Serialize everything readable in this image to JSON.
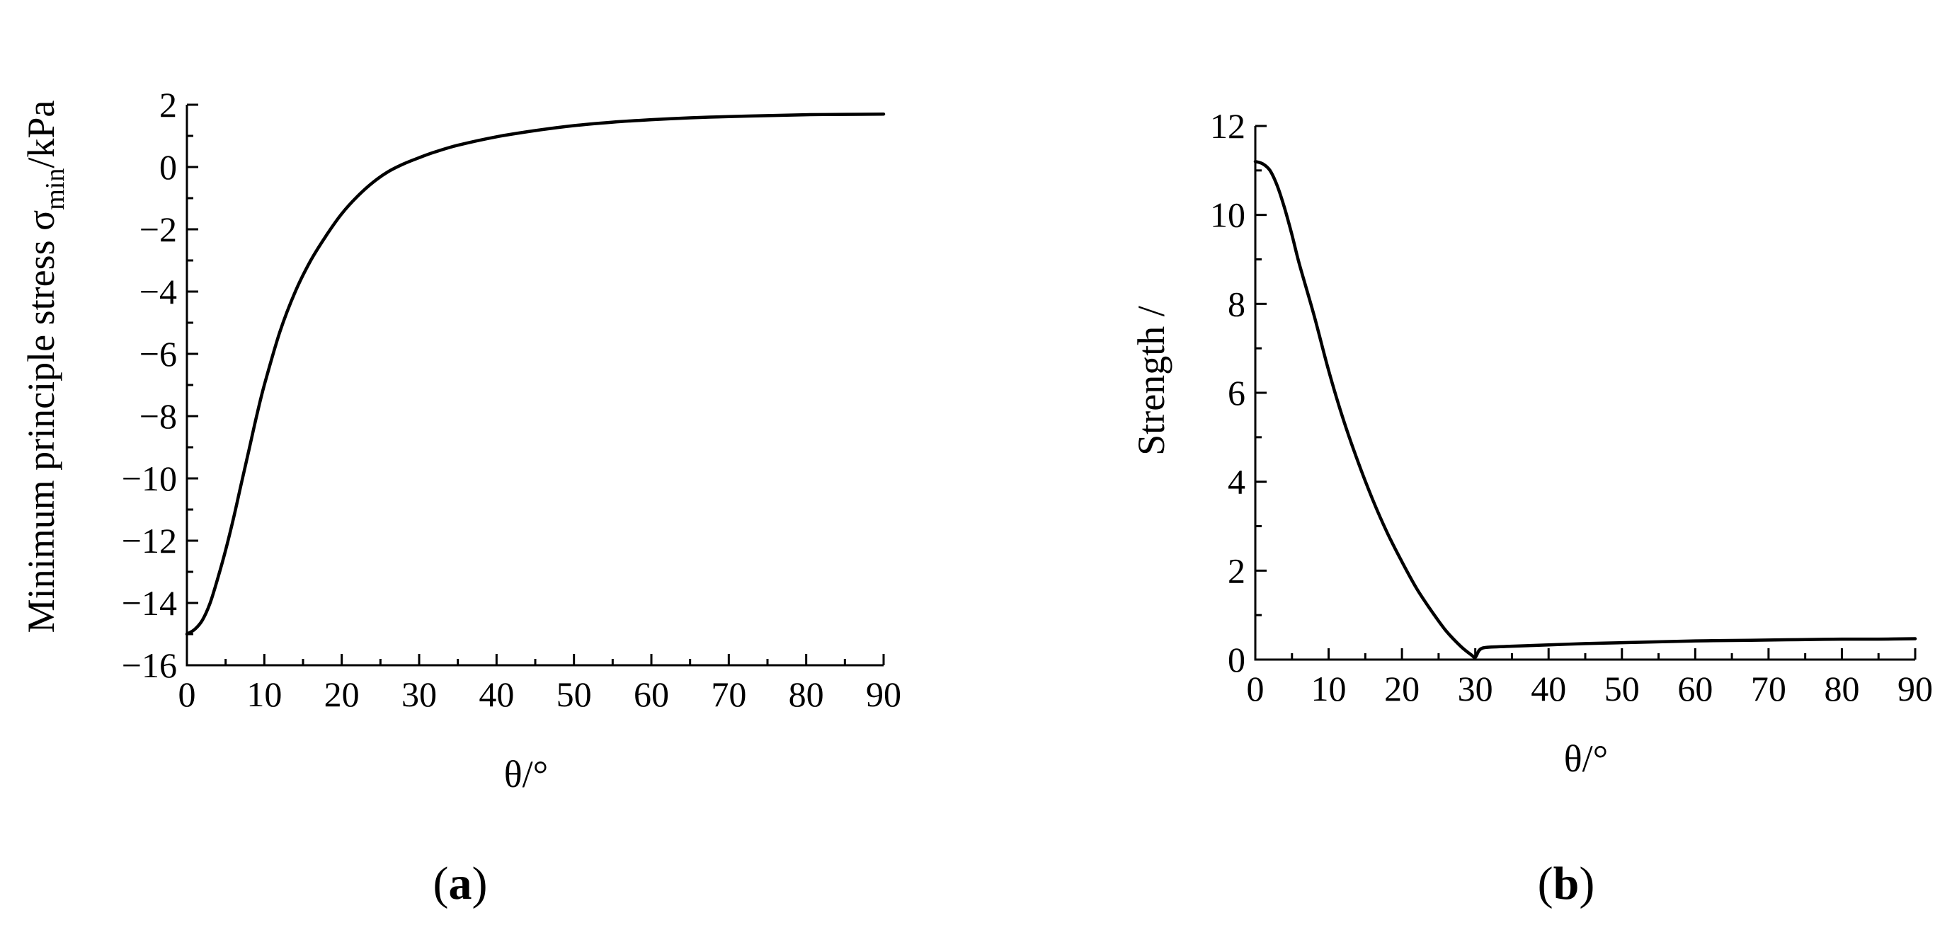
{
  "chart_data": [
    {
      "type": "line",
      "panel_label": "a",
      "xlabel": "θ/°",
      "ylabel_main": "Minimum principle stress σ",
      "ylabel_sub": "min",
      "ylabel_tail": "/kPa",
      "xlim": [
        0,
        90
      ],
      "ylim": [
        -16,
        2
      ],
      "xticks": [
        0,
        10,
        20,
        30,
        40,
        50,
        60,
        70,
        80,
        90
      ],
      "yticks": [
        -16,
        -14,
        -12,
        -10,
        -8,
        -6,
        -4,
        -2,
        0,
        2
      ],
      "xtick_labels": [
        "0",
        "10",
        "20",
        "30",
        "40",
        "50",
        "60",
        "70",
        "80",
        "90"
      ],
      "ytick_labels": [
        "−16",
        "−14",
        "−12",
        "−10",
        "−8",
        "−6",
        "−4",
        "−2",
        "0",
        "2"
      ],
      "grid": false,
      "series": [
        {
          "x": [
            0,
            1,
            2,
            3,
            4,
            5,
            6,
            7,
            8,
            9,
            10,
            12,
            14,
            16,
            18,
            20,
            22,
            24,
            26,
            28,
            30,
            32,
            35,
            40,
            45,
            50,
            55,
            60,
            65,
            70,
            75,
            80,
            85,
            90
          ],
          "y": [
            -15.0,
            -14.85,
            -14.55,
            -14.0,
            -13.2,
            -12.3,
            -11.3,
            -10.2,
            -9.1,
            -8.0,
            -7.0,
            -5.3,
            -4.0,
            -3.0,
            -2.2,
            -1.5,
            -0.95,
            -0.5,
            -0.15,
            0.1,
            0.3,
            0.48,
            0.7,
            0.97,
            1.17,
            1.33,
            1.44,
            1.52,
            1.58,
            1.62,
            1.65,
            1.68,
            1.69,
            1.7
          ]
        }
      ]
    },
    {
      "type": "line",
      "panel_label": "b",
      "xlabel": "θ/°",
      "ylabel": "Strength /",
      "xlim": [
        0,
        90
      ],
      "ylim": [
        0,
        12
      ],
      "xticks": [
        0,
        10,
        20,
        30,
        40,
        50,
        60,
        70,
        80,
        90
      ],
      "yticks": [
        0,
        2,
        4,
        6,
        8,
        10,
        12
      ],
      "xtick_labels": [
        "0",
        "10",
        "20",
        "30",
        "40",
        "50",
        "60",
        "70",
        "80",
        "90"
      ],
      "ytick_labels": [
        "0",
        "2",
        "4",
        "6",
        "8",
        "10",
        "12"
      ],
      "grid": false,
      "series": [
        {
          "x": [
            0,
            1,
            2,
            3,
            4,
            5,
            6,
            8,
            10,
            12,
            14,
            16,
            18,
            20,
            22,
            24,
            26,
            28,
            29.5,
            30,
            30.5,
            31,
            32,
            35,
            40,
            45,
            50,
            55,
            60,
            65,
            70,
            75,
            80,
            85,
            90
          ],
          "y": [
            11.2,
            11.15,
            11.0,
            10.65,
            10.15,
            9.55,
            8.9,
            7.75,
            6.5,
            5.4,
            4.45,
            3.6,
            2.85,
            2.2,
            1.6,
            1.1,
            0.65,
            0.3,
            0.1,
            0.05,
            0.2,
            0.26,
            0.28,
            0.3,
            0.33,
            0.36,
            0.38,
            0.4,
            0.42,
            0.43,
            0.44,
            0.45,
            0.46,
            0.46,
            0.47
          ]
        }
      ]
    }
  ]
}
